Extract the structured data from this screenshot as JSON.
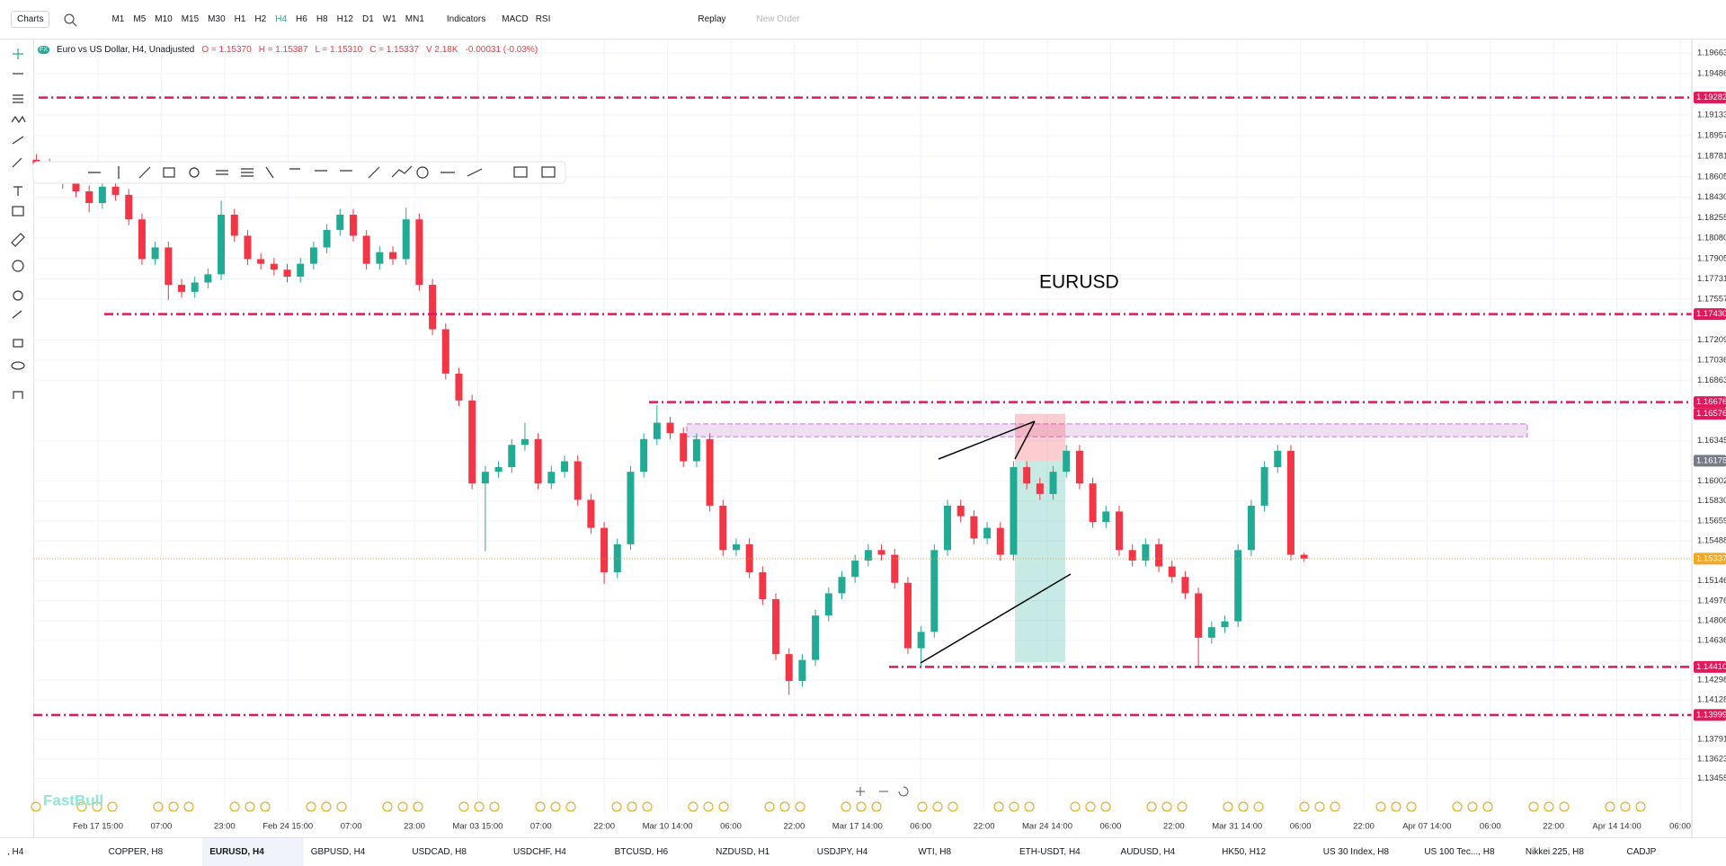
{
  "toolbar": {
    "chart_menu": "Charts",
    "timeframes": [
      "M1",
      "M5",
      "M10",
      "M15",
      "M30",
      "H1",
      "H2",
      "H4",
      "H6",
      "H8",
      "H12",
      "D1",
      "W1",
      "MN1"
    ],
    "active_timeframe": "H4",
    "indicators": "Indicators",
    "studies": [
      "MACD",
      "RSI"
    ],
    "replay": "Replay",
    "new_order": "New Order"
  },
  "legend": {
    "symbol": "Euro vs US Dollar, H4, Unadjusted",
    "open": "O = 1.15370",
    "high": "H = 1.15387",
    "low": "L = 1.15310",
    "close": "C = 1.15337",
    "volume": "V 2.18K",
    "change": "-0.00031 (-0.03%)"
  },
  "chart_data": {
    "type": "candlestick",
    "annotation": "EURUSD",
    "up_color": "#22ab94",
    "down_color": "#f23645",
    "grid": true,
    "ylim": [
      1.1316,
      1.1981
    ],
    "yticks": [
      1.19663,
      1.19486,
      1.19133,
      1.18957,
      1.18781,
      1.18605,
      {
        "value": 1.1843,
        "label": "1.18430"
      },
      1.18255,
      {
        "value": 1.1808,
        "label": "1.18080"
      },
      1.17905,
      1.17731,
      1.17557,
      1.17209,
      1.17036,
      1.16863,
      1.16345,
      1.16002,
      {
        "value": 1.1583,
        "label": "1.15830"
      },
      1.15659,
      1.15488,
      1.15146,
      1.14976,
      1.14806,
      1.14636,
      1.14298,
      1.14128,
      1.13791,
      1.13623,
      1.13455
    ],
    "x_labels": [
      "Feb 17 15:00",
      "07:00",
      "23:00",
      "Feb 24 15:00",
      "07:00",
      "23:00",
      "Mar 03 15:00",
      "07:00",
      "22:00",
      "Mar 10 14:00",
      "06:00",
      "22:00",
      "Mar 17 14:00",
      "06:00",
      "22:00",
      "Mar 24 14:00",
      "06:00",
      "22:00",
      "Mar 31 14:00",
      "06:00",
      "22:00",
      "Apr 07 14:00",
      "06:00",
      "22:00",
      "Apr 14 14:00",
      "06:00"
    ],
    "levels": [
      1.19282,
      {
        "value": 1.1743,
        "label": "1.17430"
      },
      1.16676,
      {
        "value": 1.1441,
        "label": "1.14410"
      },
      1.13999
    ],
    "level_color": "#e0195a",
    "current_price": 1.15337,
    "current_color": "#f5a623",
    "position": {
      "stop": 1.16576,
      "entry": 1.16175,
      "target": 1.1445
    },
    "zone": [
      1.1638,
      1.1649
    ],
    "ohlc": [
      [
        1.1875,
        1.188,
        1.1866,
        1.1871
      ],
      [
        1.1871,
        1.1876,
        1.1857,
        1.1862
      ],
      [
        1.1862,
        1.1867,
        1.185,
        1.1855
      ],
      [
        1.1855,
        1.186,
        1.1843,
        1.1848
      ],
      [
        1.1848,
        1.1853,
        1.183,
        1.1838
      ],
      [
        1.1838,
        1.1857,
        1.1833,
        1.1852
      ],
      [
        1.1852,
        1.1857,
        1.184,
        1.1845
      ],
      [
        1.1845,
        1.185,
        1.1819,
        1.1824
      ],
      [
        1.1824,
        1.1829,
        1.1785,
        1.179
      ],
      [
        1.179,
        1.1805,
        1.1785,
        1.18
      ],
      [
        1.18,
        1.1805,
        1.1755,
        1.1768
      ],
      [
        1.1768,
        1.1773,
        1.1757,
        1.1762
      ],
      [
        1.1762,
        1.1775,
        1.1757,
        1.177
      ],
      [
        1.177,
        1.1782,
        1.1765,
        1.1777
      ],
      [
        1.1777,
        1.184,
        1.1772,
        1.1828
      ],
      [
        1.1828,
        1.1833,
        1.1805,
        1.181
      ],
      [
        1.181,
        1.1815,
        1.1785,
        1.179
      ],
      [
        1.179,
        1.1795,
        1.1781,
        1.1786
      ],
      [
        1.1786,
        1.1791,
        1.1776,
        1.1781
      ],
      [
        1.1781,
        1.1786,
        1.177,
        1.1775
      ],
      [
        1.1775,
        1.1791,
        1.177,
        1.1786
      ],
      [
        1.1786,
        1.1805,
        1.1781,
        1.18
      ],
      [
        1.18,
        1.182,
        1.1795,
        1.1815
      ],
      [
        1.1815,
        1.1833,
        1.181,
        1.1828
      ],
      [
        1.1828,
        1.1833,
        1.1805,
        1.181
      ],
      [
        1.181,
        1.1815,
        1.1781,
        1.1786
      ],
      [
        1.1786,
        1.1801,
        1.1781,
        1.1796
      ],
      [
        1.1796,
        1.1801,
        1.1785,
        1.179
      ],
      [
        1.179,
        1.1834,
        1.1785,
        1.1824
      ],
      [
        1.1824,
        1.1829,
        1.1763,
        1.1768
      ],
      [
        1.1768,
        1.1773,
        1.1725,
        1.173
      ],
      [
        1.173,
        1.1735,
        1.1687,
        1.1692
      ],
      [
        1.1692,
        1.1697,
        1.1664,
        1.1669
      ],
      [
        1.1669,
        1.1674,
        1.1593,
        1.1598
      ],
      [
        1.1598,
        1.1613,
        1.154,
        1.1608
      ],
      [
        1.1608,
        1.1617,
        1.1603,
        1.1612
      ],
      [
        1.1612,
        1.1636,
        1.1607,
        1.1631
      ],
      [
        1.1631,
        1.165,
        1.1626,
        1.1636
      ],
      [
        1.1636,
        1.1641,
        1.1593,
        1.1598
      ],
      [
        1.1598,
        1.1613,
        1.1593,
        1.1608
      ],
      [
        1.1608,
        1.1622,
        1.1603,
        1.1617
      ],
      [
        1.1617,
        1.1622,
        1.1579,
        1.1584
      ],
      [
        1.1584,
        1.1589,
        1.1555,
        1.156
      ],
      [
        1.156,
        1.1565,
        1.1512,
        1.1522
      ],
      [
        1.1522,
        1.1551,
        1.1517,
        1.1546
      ],
      [
        1.1546,
        1.1613,
        1.1541,
        1.1608
      ],
      [
        1.1608,
        1.1641,
        1.1603,
        1.1636
      ],
      [
        1.1636,
        1.1665,
        1.1631,
        1.165
      ],
      [
        1.165,
        1.1655,
        1.1636,
        1.1641
      ],
      [
        1.1641,
        1.1646,
        1.1612,
        1.1617
      ],
      [
        1.1617,
        1.1641,
        1.1612,
        1.1636
      ],
      [
        1.1636,
        1.1641,
        1.1574,
        1.1579
      ],
      [
        1.1579,
        1.1584,
        1.1536,
        1.1541
      ],
      [
        1.1541,
        1.1551,
        1.1536,
        1.1546
      ],
      [
        1.1546,
        1.1551,
        1.1517,
        1.1522
      ],
      [
        1.1522,
        1.1527,
        1.1494,
        1.1499
      ],
      [
        1.1499,
        1.1504,
        1.1447,
        1.1452
      ],
      [
        1.1452,
        1.1457,
        1.1417,
        1.1429
      ],
      [
        1.1429,
        1.1452,
        1.1424,
        1.1447
      ],
      [
        1.1447,
        1.149,
        1.1442,
        1.1485
      ],
      [
        1.1485,
        1.1509,
        1.148,
        1.1504
      ],
      [
        1.1504,
        1.1523,
        1.1499,
        1.1518
      ],
      [
        1.1518,
        1.1537,
        1.1513,
        1.1532
      ],
      [
        1.1532,
        1.1546,
        1.1527,
        1.1541
      ],
      [
        1.1541,
        1.1546,
        1.1532,
        1.1537
      ],
      [
        1.1537,
        1.1542,
        1.1508,
        1.1513
      ],
      [
        1.1513,
        1.1518,
        1.1452,
        1.1457
      ],
      [
        1.1457,
        1.1476,
        1.1441,
        1.1471
      ],
      [
        1.1471,
        1.1546,
        1.1466,
        1.1541
      ],
      [
        1.1541,
        1.1584,
        1.1536,
        1.1579
      ],
      [
        1.1579,
        1.1584,
        1.1565,
        1.157
      ],
      [
        1.157,
        1.1575,
        1.1546,
        1.1551
      ],
      [
        1.1551,
        1.1565,
        1.1546,
        1.156
      ],
      [
        1.156,
        1.1565,
        1.1532,
        1.1537
      ],
      [
        1.1537,
        1.1617,
        1.1532,
        1.1612
      ],
      [
        1.1612,
        1.1617,
        1.1593,
        1.1598
      ],
      [
        1.1598,
        1.1603,
        1.1584,
        1.1589
      ],
      [
        1.1589,
        1.1613,
        1.1584,
        1.1608
      ],
      [
        1.1608,
        1.1631,
        1.1603,
        1.1626
      ],
      [
        1.1626,
        1.1631,
        1.1593,
        1.1598
      ],
      [
        1.1598,
        1.1603,
        1.156,
        1.1565
      ],
      [
        1.1565,
        1.1579,
        1.156,
        1.1574
      ],
      [
        1.1574,
        1.1579,
        1.1536,
        1.1541
      ],
      [
        1.1541,
        1.1546,
        1.1527,
        1.1532
      ],
      [
        1.1532,
        1.1551,
        1.1527,
        1.1546
      ],
      [
        1.1546,
        1.1551,
        1.1522,
        1.1527
      ],
      [
        1.1527,
        1.1532,
        1.1513,
        1.1518
      ],
      [
        1.1518,
        1.1523,
        1.1499,
        1.1504
      ],
      [
        1.1504,
        1.1509,
        1.1441,
        1.1466
      ],
      [
        1.1466,
        1.148,
        1.1461,
        1.1475
      ],
      [
        1.1475,
        1.1485,
        1.147,
        1.148
      ],
      [
        1.148,
        1.1546,
        1.1475,
        1.1541
      ],
      [
        1.1541,
        1.1584,
        1.1536,
        1.1579
      ],
      [
        1.1579,
        1.1617,
        1.1574,
        1.1612
      ],
      [
        1.1612,
        1.1631,
        1.1607,
        1.1626
      ],
      [
        1.1626,
        1.1631,
        1.1532,
        1.1537
      ],
      [
        1.1537,
        1.15387,
        1.1531,
        1.15337
      ]
    ]
  },
  "watermark": "FastBull",
  "tabs": [
    ", H4",
    "COPPER, H8",
    "EURUSD, H4",
    "GBPUSD, H4",
    "USDCAD, H8",
    "USDCHF, H4",
    "BTCUSD, H6",
    "NZDUSD, H1",
    "USDJPY, H4",
    "WTI, H8",
    "ETH-USDT, H4",
    "AUDUSD, H4",
    "HK50, H12",
    "US 30 Index, H8",
    "US 100 Tec..., H8",
    "Nikkei 225, H8",
    "CADJP"
  ],
  "active_tab": "EURUSD, H4"
}
